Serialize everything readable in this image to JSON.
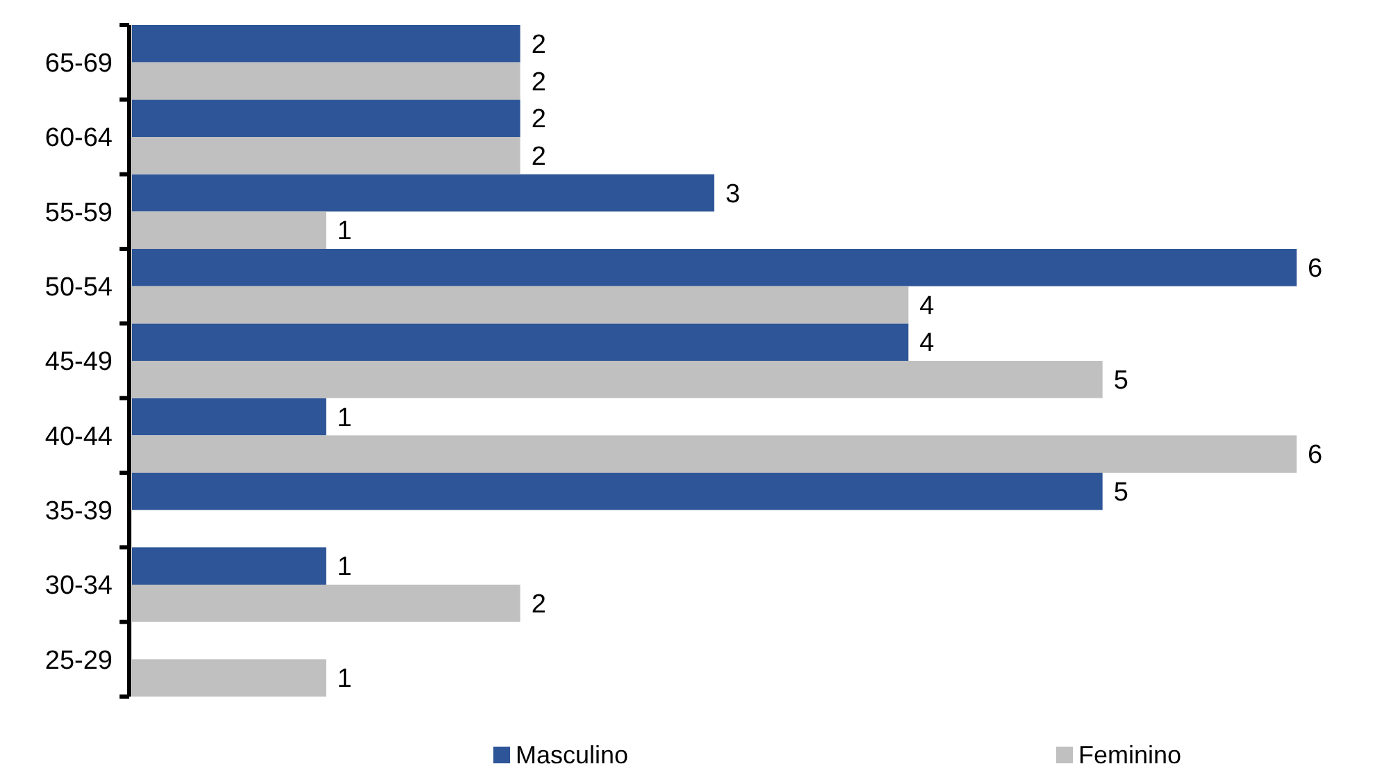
{
  "chart_data": {
    "type": "bar",
    "orientation": "horizontal",
    "categories": [
      "65-69",
      "60-64",
      "55-59",
      "50-54",
      "45-49",
      "40-44",
      "35-39",
      "30-34",
      "25-29"
    ],
    "series": [
      {
        "name": "Masculino",
        "color": "#2e5597",
        "values": [
          2,
          2,
          3,
          6,
          4,
          1,
          5,
          1,
          null
        ]
      },
      {
        "name": "Feminino",
        "color": "#c0c0c0",
        "values": [
          2,
          2,
          1,
          4,
          5,
          6,
          null,
          2,
          1
        ]
      }
    ],
    "data_labels": true,
    "legend": "bottom"
  }
}
